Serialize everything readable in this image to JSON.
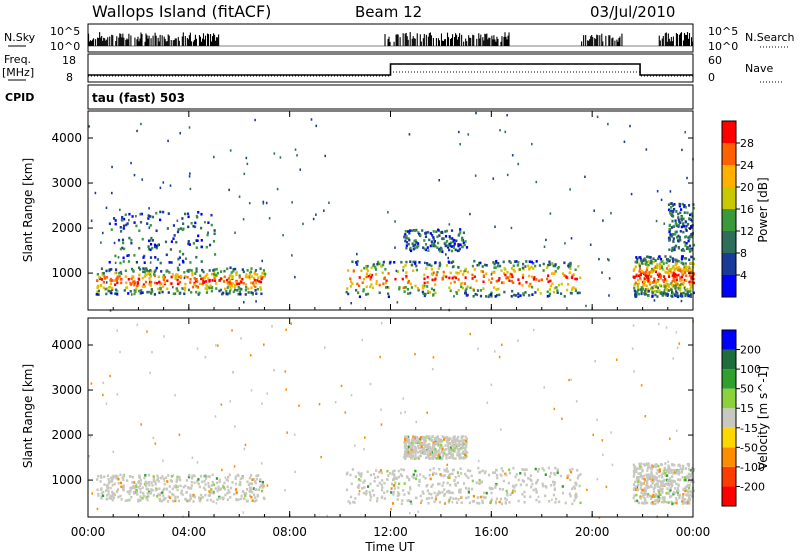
{
  "header": {
    "title": "Wallops Island (fitACF)",
    "beam": "Beam 12",
    "date": "03/Jul/2010"
  },
  "strip_labels": {
    "nsky": "N.Sky",
    "nsearch": "N.Search",
    "freq_line1": "Freq.",
    "freq_line2": "[MHz]",
    "nave": "Nave",
    "cpid": "CPID",
    "cpid_value": "tau (fast) 503"
  },
  "strip_ticks": {
    "nsky_top": "10^5",
    "nsky_bottom": "10^0",
    "freq_top": "18",
    "freq_bottom": "8",
    "nave_top": "60",
    "nave_bottom": "0"
  },
  "colors": {
    "scale_blue": "#0000ff",
    "scale_green": "#2e8b57",
    "scale_yellow": "#ffd700",
    "scale_orange": "#ff8c00",
    "scale_red": "#ff0000",
    "ground_scatter": "#c8c8c0"
  },
  "chart_data": [
    {
      "type": "heatmap",
      "name": "power",
      "ylabel": "Slant Range [km]",
      "xlabel": "",
      "x_ticks": [
        "00:00",
        "04:00",
        "08:00",
        "12:00",
        "16:00",
        "20:00",
        "00:00"
      ],
      "xlim_hours": [
        0,
        24
      ],
      "y_ticks": [
        1000,
        2000,
        3000,
        4000
      ],
      "ylim": [
        180,
        4600
      ],
      "colorbar_label": "Power [dB]",
      "colorbar_ticks": [
        4,
        8,
        12,
        16,
        20,
        24,
        28
      ],
      "colorbar_colors": [
        "#0000ff",
        "#1a3a9a",
        "#2e6e5a",
        "#3a9a3a",
        "#c8c800",
        "#ffb000",
        "#ff6000",
        "#ff0000"
      ],
      "echo_regions": [
        {
          "t0": 0.3,
          "t1": 7.0,
          "r0": 550,
          "r1": 1150,
          "level": "strong"
        },
        {
          "t0": 0.8,
          "t1": 5.0,
          "r0": 1250,
          "r1": 2400,
          "level": "weak"
        },
        {
          "t0": 10.2,
          "t1": 19.5,
          "r0": 500,
          "r1": 1300,
          "level": "strong"
        },
        {
          "t0": 12.5,
          "t1": 15.0,
          "r0": 1500,
          "r1": 2000,
          "level": "weak"
        },
        {
          "t0": 21.6,
          "t1": 24.0,
          "r0": 500,
          "r1": 1400,
          "level": "strong"
        },
        {
          "t0": 23.0,
          "t1": 24.0,
          "r0": 1500,
          "r1": 2600,
          "level": "weak"
        }
      ]
    },
    {
      "type": "heatmap",
      "name": "velocity",
      "ylabel": "Slant Range [km]",
      "xlabel": "Time UT",
      "x_ticks": [
        "00:00",
        "04:00",
        "08:00",
        "12:00",
        "16:00",
        "20:00",
        "00:00"
      ],
      "xlim_hours": [
        0,
        24
      ],
      "y_ticks": [
        1000,
        2000,
        3000,
        4000
      ],
      "ylim": [
        180,
        4600
      ],
      "colorbar_label": "Velocity [m s^-1]",
      "colorbar_ticks": [
        200,
        100,
        50,
        15,
        -15,
        -50,
        -100,
        -200
      ],
      "colorbar_colors": [
        "#0000ff",
        "#1e6e3c",
        "#2ea02e",
        "#8cd23c",
        "#c8c8c0",
        "#ffd700",
        "#ff8c00",
        "#ff3c00",
        "#ff0000"
      ],
      "echo_regions": [
        {
          "t0": 0.3,
          "t1": 7.0,
          "r0": 550,
          "r1": 1150,
          "level": "ground"
        },
        {
          "t0": 10.2,
          "t1": 19.5,
          "r0": 500,
          "r1": 1300,
          "level": "ground"
        },
        {
          "t0": 12.5,
          "t1": 15.0,
          "r0": 1500,
          "r1": 2000,
          "level": "ground"
        },
        {
          "t0": 21.6,
          "t1": 24.0,
          "r0": 500,
          "r1": 1400,
          "level": "ground"
        }
      ]
    }
  ]
}
